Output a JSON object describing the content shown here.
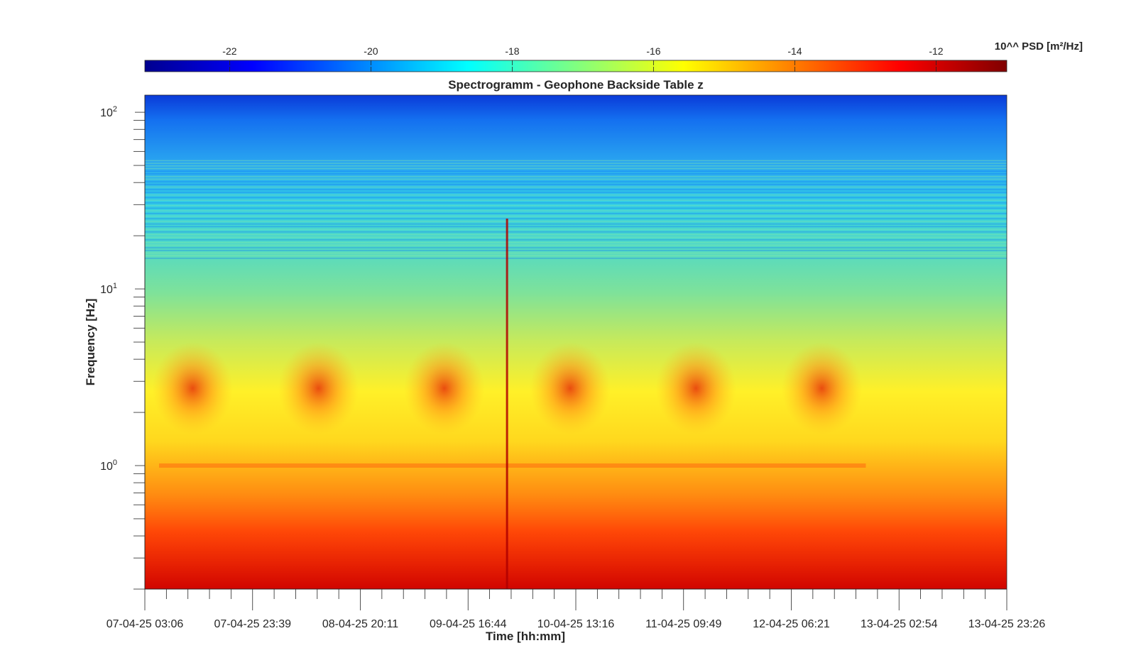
{
  "chart_data": {
    "type": "heatmap",
    "title": "Spectrogramm - Geophone Backside Table z",
    "xlabel": "Time [hh:mm]",
    "ylabel": "Frequency [Hz]",
    "y_scale": "log",
    "ylim": [
      0.2,
      125
    ],
    "y_ticks": [
      {
        "value": 1,
        "base": "10",
        "exp": "0"
      },
      {
        "value": 10,
        "base": "10",
        "exp": "1"
      },
      {
        "value": 100,
        "base": "10",
        "exp": "2"
      }
    ],
    "x_ticks": [
      "07-04-25 03:06",
      "07-04-25 23:39",
      "08-04-25 20:11",
      "09-04-25 16:44",
      "10-04-25 13:16",
      "11-04-25 09:49",
      "12-04-25 06:21",
      "13-04-25 02:54",
      "13-04-25 23:26"
    ],
    "colorbar": {
      "label": "10^^ PSD [m²/Hz]",
      "range": [
        -23.2,
        -11.0
      ],
      "ticks": [
        -22,
        -20,
        -18,
        -16,
        -14,
        -12
      ],
      "colormap": "jet",
      "colors": [
        "#00008f",
        "#0000ff",
        "#0080ff",
        "#00ffff",
        "#80ff80",
        "#ffff00",
        "#ff8000",
        "#ff0000",
        "#800000"
      ]
    },
    "features": {
      "daily_activity_band_hz": [
        1.5,
        5
      ],
      "daily_activity_centers": [
        "07-04-25",
        "08-04-25",
        "09-04-25",
        "10-04-25",
        "11-04-25",
        "12-04-25"
      ],
      "tonal_line_hz": 1.0,
      "strong_transient": "10-04-25 03:00",
      "low_frequency_high_psd_hz": [
        0.2,
        0.7
      ]
    }
  }
}
